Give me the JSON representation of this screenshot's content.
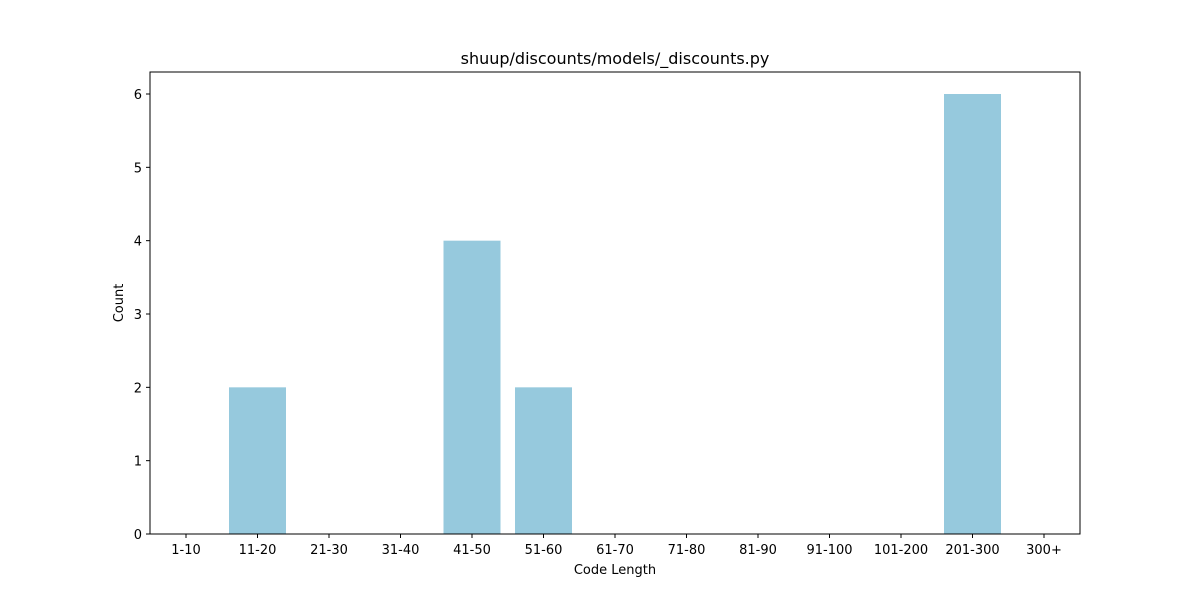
{
  "chart_data": {
    "type": "bar",
    "title": "shuup/discounts/models/_discounts.py",
    "xlabel": "Code Length",
    "ylabel": "Count",
    "categories": [
      "1-10",
      "11-20",
      "21-30",
      "31-40",
      "41-50",
      "51-60",
      "61-70",
      "71-80",
      "81-90",
      "91-100",
      "101-200",
      "201-300",
      "300+"
    ],
    "values": [
      0,
      2,
      0,
      0,
      4,
      2,
      0,
      0,
      0,
      0,
      0,
      6,
      0
    ],
    "ylim": [
      0,
      6.3
    ],
    "yticks": [
      0,
      1,
      2,
      3,
      4,
      5,
      6
    ],
    "grid": false,
    "legend": "none",
    "bar_color": "#96c9dd"
  }
}
